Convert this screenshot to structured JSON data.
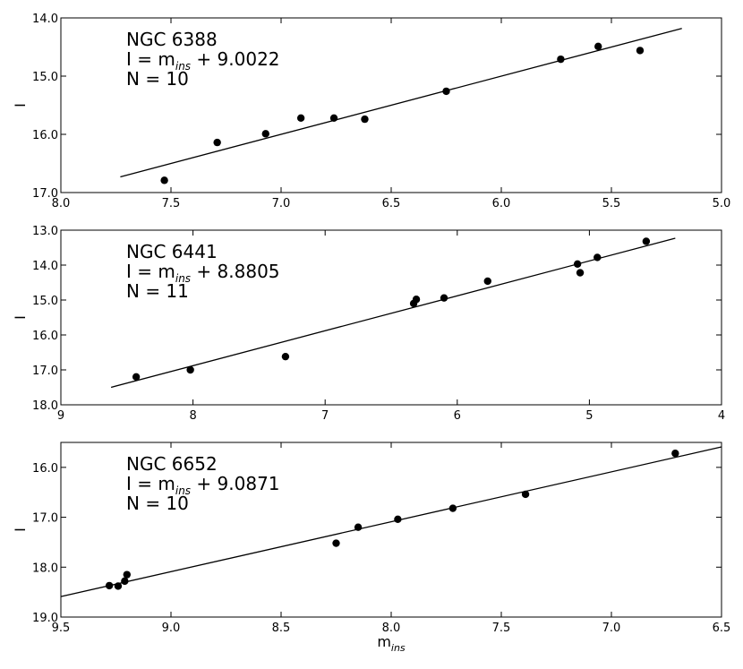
{
  "chart_data": [
    {
      "type": "scatter",
      "title": "",
      "xlabel": "",
      "ylabel": "I",
      "xlim": [
        8.0,
        5.0
      ],
      "ylim": [
        17.0,
        14.0
      ],
      "x_inverted": true,
      "y_inverted": true,
      "xticks": [
        "8.0",
        "7.5",
        "7.0",
        "6.5",
        "6.0",
        "5.5",
        "5.0"
      ],
      "yticks": [
        "14.0",
        "15.0",
        "16.0",
        "17.0"
      ],
      "annotation": {
        "name": "NGC 6388",
        "eq_prefix": "I = m",
        "eq_sub": "ins",
        "eq_suffix": " + 9.0022",
        "n": "N = 10"
      },
      "points": [
        {
          "x": 7.53,
          "y": 16.79
        },
        {
          "x": 7.29,
          "y": 16.14
        },
        {
          "x": 7.07,
          "y": 15.99
        },
        {
          "x": 6.91,
          "y": 15.72
        },
        {
          "x": 6.76,
          "y": 15.72
        },
        {
          "x": 6.62,
          "y": 15.74
        },
        {
          "x": 6.25,
          "y": 15.26
        },
        {
          "x": 5.73,
          "y": 14.71
        },
        {
          "x": 5.56,
          "y": 14.49
        },
        {
          "x": 5.37,
          "y": 14.56
        }
      ],
      "fit_line": {
        "x": [
          7.73,
          5.18
        ],
        "y": [
          16.73,
          14.18
        ]
      },
      "grid": false,
      "legend": "none"
    },
    {
      "type": "scatter",
      "title": "",
      "xlabel": "",
      "ylabel": "I",
      "xlim": [
        9,
        4
      ],
      "ylim": [
        18.0,
        13.0
      ],
      "x_inverted": true,
      "y_inverted": true,
      "xticks": [
        "9",
        "8",
        "7",
        "6",
        "5",
        "4"
      ],
      "yticks": [
        "13.0",
        "14.0",
        "15.0",
        "16.0",
        "17.0",
        "18.0"
      ],
      "annotation": {
        "name": "NGC 6441",
        "eq_prefix": "I = m",
        "eq_sub": "ins",
        "eq_suffix": " + 8.8805",
        "n": "N = 11"
      },
      "points": [
        {
          "x": 8.43,
          "y": 17.2
        },
        {
          "x": 8.02,
          "y": 17.0
        },
        {
          "x": 7.3,
          "y": 16.62
        },
        {
          "x": 6.33,
          "y": 15.1
        },
        {
          "x": 6.31,
          "y": 14.98
        },
        {
          "x": 6.1,
          "y": 14.94
        },
        {
          "x": 5.77,
          "y": 14.46
        },
        {
          "x": 5.09,
          "y": 13.97
        },
        {
          "x": 5.07,
          "y": 14.22
        },
        {
          "x": 4.94,
          "y": 13.78
        },
        {
          "x": 4.57,
          "y": 13.32
        }
      ],
      "fit_line": {
        "x": [
          8.62,
          4.35
        ],
        "y": [
          17.5,
          13.23
        ]
      },
      "grid": false,
      "legend": "none"
    },
    {
      "type": "scatter",
      "title": "",
      "xlabel": "m",
      "xlabel_sub": "ins",
      "ylabel": "I",
      "xlim": [
        9.5,
        6.5
      ],
      "ylim": [
        19.0,
        15.5
      ],
      "x_inverted": true,
      "y_inverted": true,
      "xticks": [
        "9.5",
        "9.0",
        "8.5",
        "8.0",
        "7.5",
        "7.0",
        "6.5"
      ],
      "yticks": [
        "16.0",
        "17.0",
        "18.0",
        "19.0"
      ],
      "annotation": {
        "name": "NGC 6652",
        "eq_prefix": "I = m",
        "eq_sub": "ins",
        "eq_suffix": " + 9.0871",
        "n": "N = 10"
      },
      "points": [
        {
          "x": 9.28,
          "y": 18.37
        },
        {
          "x": 9.24,
          "y": 18.38
        },
        {
          "x": 9.21,
          "y": 18.28
        },
        {
          "x": 9.2,
          "y": 18.15
        },
        {
          "x": 8.25,
          "y": 17.52
        },
        {
          "x": 8.15,
          "y": 17.2
        },
        {
          "x": 7.97,
          "y": 17.04
        },
        {
          "x": 7.72,
          "y": 16.82
        },
        {
          "x": 7.39,
          "y": 16.54
        },
        {
          "x": 6.71,
          "y": 15.72
        }
      ],
      "fit_line": {
        "x": [
          9.5,
          6.5
        ],
        "y": [
          18.59,
          15.59
        ]
      },
      "grid": false,
      "legend": "none"
    }
  ]
}
